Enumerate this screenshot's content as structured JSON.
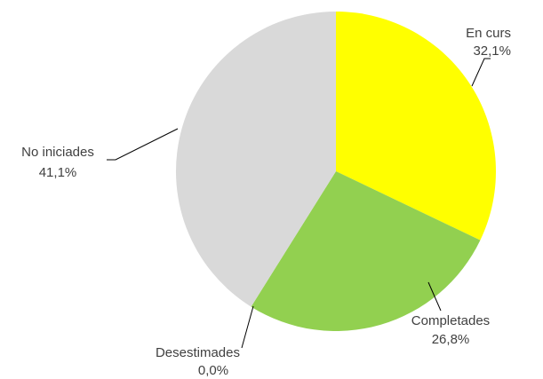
{
  "chart_data": {
    "type": "pie",
    "categories": [
      "En curs",
      "Completades",
      "Desestimades",
      "No iniciades"
    ],
    "values": [
      32.1,
      26.8,
      0.0,
      41.1
    ],
    "value_labels": [
      "32,1%",
      "26,8%",
      "0,0%",
      "41,1%"
    ],
    "colors": [
      "#ffff00",
      "#92d050",
      "#4f81bd",
      "#d9d9d9"
    ]
  }
}
